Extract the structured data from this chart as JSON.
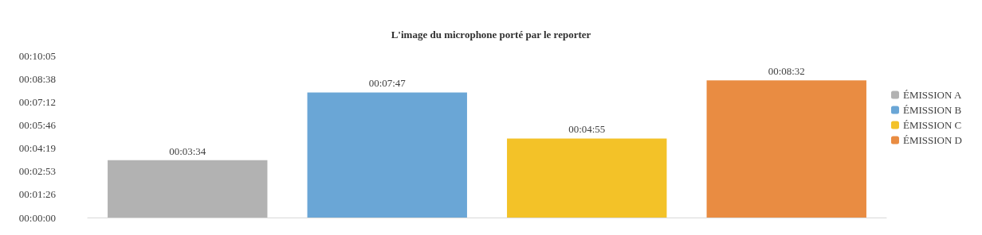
{
  "chart_data": {
    "type": "bar",
    "title": "L'image du microphone porté par le reporter",
    "categories": [
      null,
      null,
      null,
      null
    ],
    "series": [
      {
        "name": "ÉMISSION A",
        "color": "#b2b2b2",
        "values": [
          214,
          null,
          null,
          null
        ],
        "value_labels": [
          "00:03:34",
          null,
          null,
          null
        ]
      },
      {
        "name": "ÉMISSION B",
        "color": "#6aa6d6",
        "values": [
          null,
          467,
          null,
          null
        ],
        "value_labels": [
          null,
          "00:07:47",
          null,
          null
        ]
      },
      {
        "name": "ÉMISSION C",
        "color": "#f3c228",
        "values": [
          null,
          null,
          295,
          null
        ],
        "value_labels": [
          null,
          null,
          "00:04:55",
          null
        ]
      },
      {
        "name": "ÉMISSION D",
        "color": "#e98c42",
        "values": [
          null,
          null,
          null,
          512
        ],
        "value_labels": [
          null,
          null,
          null,
          "00:08:32"
        ]
      }
    ],
    "ylim": [
      0,
      604.8
    ],
    "yticks": [
      {
        "value": 0,
        "label": "00:00:00"
      },
      {
        "value": 86.4,
        "label": "00:01:26"
      },
      {
        "value": 172.8,
        "label": "00:02:53"
      },
      {
        "value": 259.2,
        "label": "00:04:19"
      },
      {
        "value": 345.6,
        "label": "00:05:46"
      },
      {
        "value": 432,
        "label": "00:07:12"
      },
      {
        "value": 518.4,
        "label": "00:08:38"
      },
      {
        "value": 604.8,
        "label": "00:10:05"
      }
    ],
    "grid": false,
    "legend": "right",
    "tick_labels": "y"
  }
}
